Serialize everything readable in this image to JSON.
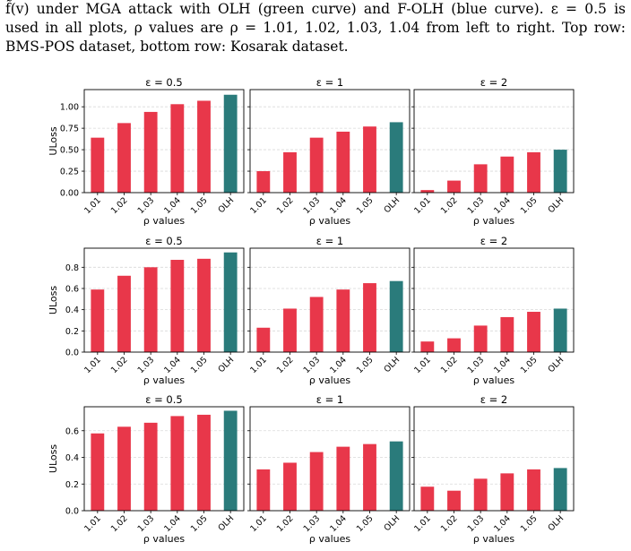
{
  "caption": {
    "lines": [
      "f̃(v) under MGA attack with OLH (green curve) and F-OLH (blue curve). ε = 0.5 is",
      "used in all plots, ρ values are ρ = 1.01, 1.02, 1.03, 1.04 from left to right. Top row:",
      "BMS-POS dataset, bottom row: Kosarak dataset."
    ]
  },
  "colors": {
    "bar": "#e8374a",
    "olh_bar": "#2a7b7b",
    "grid": "#d9d9d9",
    "axis": "#000000"
  },
  "chart_data": [
    {
      "type": "bar",
      "title": "ε = 0.5",
      "xlabel": "ρ values",
      "ylabel": "ULoss",
      "categories": [
        "1.01",
        "1.02",
        "1.03",
        "1.04",
        "1.05",
        "OLH"
      ],
      "values": [
        0.64,
        0.81,
        0.94,
        1.03,
        1.07,
        1.14
      ],
      "ylim": [
        0,
        1.2
      ],
      "yticks": [
        "0.00",
        "0.25",
        "0.50",
        "0.75",
        "1.00"
      ],
      "ytick_values": [
        0,
        0.25,
        0.5,
        0.75,
        1.0
      ],
      "grid": "horizontal"
    },
    {
      "type": "bar",
      "title": "ε = 1",
      "xlabel": "ρ values",
      "ylabel": "",
      "categories": [
        "1.01",
        "1.02",
        "1.03",
        "1.04",
        "1.05",
        "OLH"
      ],
      "values": [
        0.25,
        0.47,
        0.64,
        0.71,
        0.77,
        0.82
      ],
      "ylim": [
        0,
        1.2
      ],
      "yticks": [],
      "ytick_values": [
        0,
        0.25,
        0.5,
        0.75,
        1.0
      ],
      "grid": "horizontal"
    },
    {
      "type": "bar",
      "title": "ε = 2",
      "xlabel": "ρ values",
      "ylabel": "",
      "categories": [
        "1.01",
        "1.02",
        "1.03",
        "1.04",
        "1.05",
        "OLH"
      ],
      "values": [
        0.03,
        0.14,
        0.33,
        0.42,
        0.47,
        0.5
      ],
      "ylim": [
        0,
        1.2
      ],
      "yticks": [],
      "ytick_values": [
        0,
        0.25,
        0.5,
        0.75,
        1.0
      ],
      "grid": "horizontal"
    },
    {
      "type": "bar",
      "title": "ε = 0.5",
      "xlabel": "ρ values",
      "ylabel": "ULoss",
      "categories": [
        "1.01",
        "1.02",
        "1.03",
        "1.04",
        "1.05",
        "OLH"
      ],
      "values": [
        0.59,
        0.72,
        0.8,
        0.87,
        0.88,
        0.94
      ],
      "ylim": [
        0,
        0.98
      ],
      "yticks": [
        "0.0",
        "0.2",
        "0.4",
        "0.6",
        "0.8"
      ],
      "ytick_values": [
        0,
        0.2,
        0.4,
        0.6,
        0.8
      ],
      "grid": "horizontal"
    },
    {
      "type": "bar",
      "title": "ε = 1",
      "xlabel": "ρ values",
      "ylabel": "",
      "categories": [
        "1.01",
        "1.02",
        "1.03",
        "1.04",
        "1.05",
        "OLH"
      ],
      "values": [
        0.23,
        0.41,
        0.52,
        0.59,
        0.65,
        0.67
      ],
      "ylim": [
        0,
        0.98
      ],
      "yticks": [],
      "ytick_values": [
        0,
        0.2,
        0.4,
        0.6,
        0.8
      ],
      "grid": "horizontal"
    },
    {
      "type": "bar",
      "title": "ε = 2",
      "xlabel": "ρ values",
      "ylabel": "",
      "categories": [
        "1.01",
        "1.02",
        "1.03",
        "1.04",
        "1.05",
        "OLH"
      ],
      "values": [
        0.1,
        0.13,
        0.25,
        0.33,
        0.38,
        0.41
      ],
      "ylim": [
        0,
        0.98
      ],
      "yticks": [],
      "ytick_values": [
        0,
        0.2,
        0.4,
        0.6,
        0.8
      ],
      "grid": "horizontal"
    },
    {
      "type": "bar",
      "title": "ε = 0.5",
      "xlabel": "ρ values",
      "ylabel": "ULoss",
      "categories": [
        "1.01",
        "1.02",
        "1.03",
        "1.04",
        "1.05",
        "OLH"
      ],
      "values": [
        0.58,
        0.63,
        0.66,
        0.71,
        0.72,
        0.75
      ],
      "ylim": [
        0,
        0.78
      ],
      "yticks": [
        "0.0",
        "0.2",
        "0.4",
        "0.6"
      ],
      "ytick_values": [
        0,
        0.2,
        0.4,
        0.6
      ],
      "grid": "horizontal"
    },
    {
      "type": "bar",
      "title": "ε = 1",
      "xlabel": "ρ values",
      "ylabel": "",
      "categories": [
        "1.01",
        "1.02",
        "1.03",
        "1.04",
        "1.05",
        "OLH"
      ],
      "values": [
        0.31,
        0.36,
        0.44,
        0.48,
        0.5,
        0.52
      ],
      "ylim": [
        0,
        0.78
      ],
      "yticks": [],
      "ytick_values": [
        0,
        0.2,
        0.4,
        0.6
      ],
      "grid": "horizontal"
    },
    {
      "type": "bar",
      "title": "ε = 2",
      "xlabel": "ρ values",
      "ylabel": "",
      "categories": [
        "1.01",
        "1.02",
        "1.03",
        "1.04",
        "1.05",
        "OLH"
      ],
      "values": [
        0.18,
        0.15,
        0.24,
        0.28,
        0.31,
        0.32
      ],
      "ylim": [
        0,
        0.78
      ],
      "yticks": [],
      "ytick_values": [
        0,
        0.2,
        0.4,
        0.6
      ],
      "grid": "horizontal"
    }
  ]
}
